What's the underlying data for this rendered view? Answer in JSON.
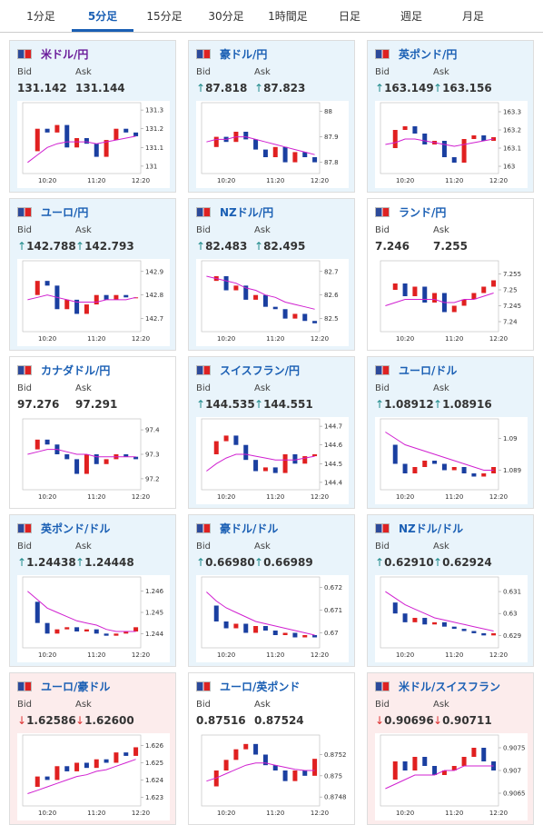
{
  "tabs": {
    "items": [
      "1分足",
      "5分足",
      "15分足",
      "30分足",
      "1時間足",
      "日足",
      "週足",
      "月足"
    ],
    "selected": 1
  },
  "labels": {
    "bid": "Bid",
    "ask": "Ask"
  },
  "time_labels": [
    "10:20",
    "11:20",
    "12:20"
  ],
  "cards": [
    {
      "name": "米ドル/円",
      "bid": "131.142",
      "ask": "131.144",
      "background": "#e9f4fb",
      "title_color": "#6a1b9a",
      "chart": {
        "ylim": [
          130.98,
          131.32
        ],
        "yticks": [
          131,
          131.1,
          131.2,
          131.3
        ],
        "closes": [
          131.08,
          131.2,
          131.18,
          131.22,
          131.1,
          131.15,
          131.12,
          131.05,
          131.14,
          131.2,
          131.18,
          131.16
        ],
        "ma": [
          131.02,
          131.06,
          131.1,
          131.12,
          131.13,
          131.13,
          131.13,
          131.12,
          131.13,
          131.14,
          131.15,
          131.16
        ]
      }
    },
    {
      "name": "豪ドル/円",
      "bid": "87.818",
      "ask": "87.823",
      "arrow": "↑",
      "background": "#e9f4fb",
      "chart": {
        "ylim": [
          87.77,
          88.02
        ],
        "yticks": [
          87.8,
          87.9,
          88
        ],
        "closes": [
          87.86,
          87.9,
          87.88,
          87.92,
          87.89,
          87.85,
          87.82,
          87.86,
          87.8,
          87.84,
          87.82,
          87.8
        ],
        "ma": [
          87.88,
          87.89,
          87.89,
          87.9,
          87.9,
          87.89,
          87.88,
          87.87,
          87.86,
          87.85,
          87.84,
          87.83
        ]
      }
    },
    {
      "name": "英ポンド/円",
      "bid": "163.149",
      "ask": "163.156",
      "arrow": "↑",
      "background": "#e9f4fb",
      "chart": {
        "ylim": [
          162.98,
          163.33
        ],
        "yticks": [
          163,
          163.1,
          163.2,
          163.3
        ],
        "closes": [
          163.1,
          163.2,
          163.22,
          163.18,
          163.12,
          163.14,
          163.05,
          163.02,
          163.15,
          163.17,
          163.14,
          163.16
        ],
        "ma": [
          163.12,
          163.13,
          163.15,
          163.15,
          163.14,
          163.13,
          163.12,
          163.11,
          163.12,
          163.13,
          163.14,
          163.15
        ]
      }
    },
    {
      "name": "ユーロ/円",
      "bid": "142.788",
      "ask": "142.793",
      "arrow": "↑",
      "background": "#e9f4fb",
      "chart": {
        "ylim": [
          142.66,
          142.93
        ],
        "yticks": [
          142.7,
          142.8,
          142.9
        ],
        "closes": [
          142.8,
          142.86,
          142.84,
          142.74,
          142.78,
          142.72,
          142.76,
          142.8,
          142.78,
          142.8,
          142.79,
          142.79
        ],
        "ma": [
          142.78,
          142.79,
          142.8,
          142.79,
          142.78,
          142.77,
          142.77,
          142.77,
          142.78,
          142.78,
          142.78,
          142.79
        ]
      }
    },
    {
      "name": "NZドル/円",
      "bid": "82.483",
      "ask": "82.495",
      "arrow": "↑",
      "background": "#e9f4fb",
      "chart": {
        "ylim": [
          82.46,
          82.73
        ],
        "yticks": [
          82.5,
          82.6,
          82.7
        ],
        "closes": [
          82.66,
          82.68,
          82.62,
          82.64,
          82.58,
          82.6,
          82.55,
          82.54,
          82.5,
          82.52,
          82.49,
          82.48
        ],
        "ma": [
          82.68,
          82.67,
          82.66,
          82.65,
          82.63,
          82.62,
          82.6,
          82.59,
          82.57,
          82.56,
          82.55,
          82.54
        ]
      }
    },
    {
      "name": "ランド/円",
      "bid": "7.246",
      "ask": "7.255",
      "background": "#ffffff",
      "chart": {
        "ylim": [
          7.238,
          7.258
        ],
        "yticks": [
          7.24,
          7.245,
          7.25,
          7.255
        ],
        "closes": [
          7.25,
          7.252,
          7.248,
          7.251,
          7.246,
          7.249,
          7.243,
          7.245,
          7.247,
          7.249,
          7.251,
          7.253
        ],
        "ma": [
          7.245,
          7.246,
          7.247,
          7.247,
          7.247,
          7.247,
          7.246,
          7.246,
          7.247,
          7.247,
          7.248,
          7.249
        ]
      }
    },
    {
      "name": "カナダドル/円",
      "bid": "97.276",
      "ask": "97.291",
      "background": "#ffffff",
      "chart": {
        "ylim": [
          97.17,
          97.43
        ],
        "yticks": [
          97.2,
          97.3,
          97.4
        ],
        "closes": [
          97.32,
          97.36,
          97.34,
          97.3,
          97.28,
          97.22,
          97.3,
          97.26,
          97.28,
          97.3,
          97.29,
          97.28
        ],
        "ma": [
          97.3,
          97.31,
          97.32,
          97.32,
          97.31,
          97.3,
          97.3,
          97.29,
          97.29,
          97.29,
          97.29,
          97.29
        ]
      }
    },
    {
      "name": "スイスフラン/円",
      "bid": "144.535",
      "ask": "144.551",
      "arrow": "↑",
      "background": "#e9f4fb",
      "chart": {
        "ylim": [
          144.38,
          144.72
        ],
        "yticks": [
          144.4,
          144.5,
          144.6,
          144.7
        ],
        "closes": [
          144.55,
          144.62,
          144.65,
          144.6,
          144.52,
          144.46,
          144.48,
          144.45,
          144.55,
          144.5,
          144.54,
          144.55
        ],
        "ma": [
          144.46,
          144.5,
          144.53,
          144.55,
          144.55,
          144.54,
          144.53,
          144.52,
          144.52,
          144.52,
          144.53,
          144.54
        ]
      }
    },
    {
      "name": "ユーロ/ドル",
      "bid": "1.08912",
      "ask": "1.08916",
      "arrow": "↑",
      "background": "#e9f4fb",
      "chart": {
        "ylim": [
          1.0885,
          1.0905
        ],
        "yticks": [
          1.089,
          1.09
        ],
        "closes": [
          1.0898,
          1.0892,
          1.0889,
          1.0891,
          1.0893,
          1.0892,
          1.089,
          1.0891,
          1.0889,
          1.0888,
          1.0889,
          1.0891
        ],
        "ma": [
          1.0902,
          1.09,
          1.0898,
          1.0897,
          1.0896,
          1.0895,
          1.0894,
          1.0893,
          1.0892,
          1.0891,
          1.089,
          1.089
        ]
      }
    },
    {
      "name": "英ポンド/ドル",
      "bid": "1.24438",
      "ask": "1.24448",
      "arrow": "↑",
      "background": "#e9f4fb",
      "chart": {
        "ylim": [
          1.2435,
          1.2465
        ],
        "yticks": [
          1.244,
          1.245,
          1.246
        ],
        "closes": [
          1.2455,
          1.2445,
          1.244,
          1.2442,
          1.2443,
          1.2441,
          1.2442,
          1.244,
          1.2439,
          1.244,
          1.2441,
          1.2443
        ],
        "ma": [
          1.246,
          1.2456,
          1.2452,
          1.245,
          1.2448,
          1.2446,
          1.2445,
          1.2444,
          1.2442,
          1.2441,
          1.2441,
          1.2441
        ]
      }
    },
    {
      "name": "豪ドル/ドル",
      "bid": "0.66980",
      "ask": "0.66989",
      "arrow": "↑",
      "background": "#e9f4fb",
      "chart": {
        "ylim": [
          0.6695,
          0.6723
        ],
        "yticks": [
          0.67,
          0.671,
          0.672
        ],
        "closes": [
          0.6712,
          0.6705,
          0.6702,
          0.6704,
          0.67,
          0.6703,
          0.6701,
          0.6699,
          0.67,
          0.6698,
          0.6699,
          0.6698
        ],
        "ma": [
          0.6718,
          0.6714,
          0.6711,
          0.6709,
          0.6707,
          0.6705,
          0.6704,
          0.6703,
          0.6702,
          0.6701,
          0.67,
          0.6699
        ]
      }
    },
    {
      "name": "NZドル/ドル",
      "bid": "0.62910",
      "ask": "0.62924",
      "arrow": "↑",
      "background": "#e9f4fb",
      "chart": {
        "ylim": [
          0.6286,
          0.6315
        ],
        "yticks": [
          0.629,
          0.63,
          0.631
        ],
        "closes": [
          0.6305,
          0.63,
          0.6296,
          0.6298,
          0.6295,
          0.6296,
          0.6294,
          0.6293,
          0.6292,
          0.6291,
          0.629,
          0.6291
        ],
        "ma": [
          0.631,
          0.6307,
          0.6304,
          0.6302,
          0.63,
          0.6298,
          0.6297,
          0.6296,
          0.6295,
          0.6294,
          0.6293,
          0.6292
        ]
      }
    },
    {
      "name": "ユーロ/豪ドル",
      "bid": "1.62586",
      "ask": "1.62600",
      "arrow": "↓",
      "background": "#fcecec",
      "chart": {
        "ylim": [
          1.6227,
          1.6264
        ],
        "yticks": [
          1.623,
          1.624,
          1.625,
          1.626
        ],
        "closes": [
          1.6236,
          1.6242,
          1.624,
          1.6248,
          1.6245,
          1.625,
          1.6247,
          1.6252,
          1.625,
          1.6256,
          1.6254,
          1.6259
        ],
        "ma": [
          1.6232,
          1.6234,
          1.6236,
          1.6238,
          1.624,
          1.6242,
          1.6243,
          1.6245,
          1.6246,
          1.6248,
          1.625,
          1.6252
        ]
      }
    },
    {
      "name": "ユーロ/英ポンド",
      "bid": "0.87516",
      "ask": "0.87524",
      "background": "#ffffff",
      "chart": {
        "ylim": [
          0.87475,
          0.87535
        ],
        "yticks": [
          0.8748,
          0.875,
          0.8752
        ],
        "closes": [
          0.8749,
          0.87505,
          0.87515,
          0.87525,
          0.8753,
          0.8752,
          0.8751,
          0.87505,
          0.87495,
          0.87505,
          0.875,
          0.87516
        ],
        "ma": [
          0.87495,
          0.87498,
          0.87502,
          0.87506,
          0.8751,
          0.87512,
          0.87512,
          0.8751,
          0.87508,
          0.87506,
          0.87505,
          0.87505
        ]
      }
    },
    {
      "name": "米ドル/スイスフラン",
      "bid": "0.90696",
      "ask": "0.90711",
      "arrow": "↓",
      "background": "#fcecec",
      "chart": {
        "ylim": [
          0.9063,
          0.9077
        ],
        "yticks": [
          0.9065,
          0.907,
          0.9075
        ],
        "closes": [
          0.9068,
          0.9072,
          0.907,
          0.9073,
          0.9071,
          0.9069,
          0.907,
          0.9071,
          0.9073,
          0.9075,
          0.9072,
          0.907
        ],
        "ma": [
          0.9066,
          0.9067,
          0.9068,
          0.9069,
          0.9069,
          0.9069,
          0.907,
          0.907,
          0.9071,
          0.9071,
          0.9071,
          0.9071
        ]
      }
    }
  ]
}
